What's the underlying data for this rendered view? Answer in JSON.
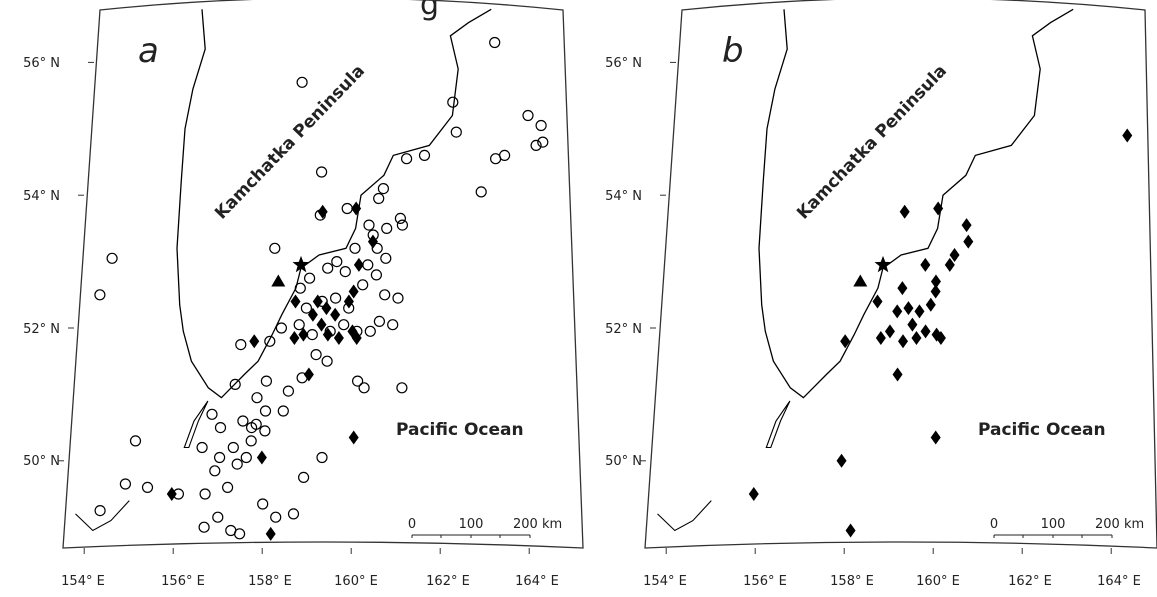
{
  "title_fragment": "g",
  "axes": {
    "lat_labels": [
      "56° N",
      "54° N",
      "52° N",
      "50° N"
    ],
    "lon_labels": [
      "154° E",
      "156° E",
      "158° E",
      "160° E",
      "162° E",
      "164° E"
    ]
  },
  "place_labels": {
    "peninsula": "Kamchatka Peninsula",
    "ocean": "Pacific Ocean"
  },
  "scale_bar": {
    "labels": [
      "0",
      "100",
      "200 km"
    ]
  },
  "colors": {
    "symbols": "#000000",
    "coast": "#000000",
    "background": "#ffffff"
  },
  "legend_symbols": {
    "circle": "open circle",
    "diamond": "filled diamond",
    "star": "filled star",
    "triangle": "filled triangle"
  },
  "panels": [
    {
      "letter": "a",
      "star": [
        158.7,
        52.95
      ],
      "triangle": [
        158.2,
        52.7
      ],
      "circles": [
        [
          158.6,
          55.7
        ],
        [
          162.9,
          56.3
        ],
        [
          162.0,
          55.4
        ],
        [
          162.1,
          54.95
        ],
        [
          163.7,
          55.2
        ],
        [
          164.0,
          55.05
        ],
        [
          164.05,
          54.8
        ],
        [
          163.9,
          54.75
        ],
        [
          163.2,
          54.6
        ],
        [
          163.0,
          54.55
        ],
        [
          162.7,
          54.05
        ],
        [
          161.4,
          54.6
        ],
        [
          161.0,
          54.55
        ],
        [
          160.5,
          54.1
        ],
        [
          160.4,
          53.95
        ],
        [
          159.1,
          54.35
        ],
        [
          159.1,
          53.7
        ],
        [
          158.1,
          53.2
        ],
        [
          159.7,
          53.8
        ],
        [
          160.2,
          53.55
        ],
        [
          160.6,
          53.5
        ],
        [
          160.9,
          53.65
        ],
        [
          160.95,
          53.55
        ],
        [
          160.3,
          53.4
        ],
        [
          159.9,
          53.2
        ],
        [
          160.4,
          53.2
        ],
        [
          160.6,
          53.05
        ],
        [
          160.2,
          52.95
        ],
        [
          159.7,
          52.85
        ],
        [
          159.5,
          53.0
        ],
        [
          159.3,
          52.9
        ],
        [
          158.9,
          52.75
        ],
        [
          158.7,
          52.6
        ],
        [
          158.85,
          52.3
        ],
        [
          159.2,
          52.4
        ],
        [
          159.5,
          52.45
        ],
        [
          159.8,
          52.3
        ],
        [
          160.1,
          52.65
        ],
        [
          160.4,
          52.8
        ],
        [
          160.6,
          52.5
        ],
        [
          160.9,
          52.45
        ],
        [
          160.8,
          52.05
        ],
        [
          160.5,
          52.1
        ],
        [
          160.3,
          51.95
        ],
        [
          160.0,
          51.95
        ],
        [
          159.7,
          52.05
        ],
        [
          159.4,
          51.95
        ],
        [
          159.0,
          51.9
        ],
        [
          158.7,
          52.05
        ],
        [
          158.3,
          52.0
        ],
        [
          158.05,
          51.8
        ],
        [
          157.4,
          51.75
        ],
        [
          159.1,
          51.6
        ],
        [
          159.35,
          51.5
        ],
        [
          158.8,
          51.25
        ],
        [
          158.5,
          51.05
        ],
        [
          158.0,
          51.2
        ],
        [
          157.8,
          50.95
        ],
        [
          157.3,
          51.15
        ],
        [
          156.8,
          50.7
        ],
        [
          157.0,
          50.5
        ],
        [
          157.5,
          50.6
        ],
        [
          157.8,
          50.55
        ],
        [
          158.4,
          50.75
        ],
        [
          158.0,
          50.45
        ],
        [
          157.7,
          50.3
        ],
        [
          157.3,
          50.2
        ],
        [
          157.0,
          50.05
        ],
        [
          156.6,
          50.2
        ],
        [
          156.9,
          49.85
        ],
        [
          157.4,
          49.95
        ],
        [
          157.6,
          50.05
        ],
        [
          157.2,
          49.6
        ],
        [
          156.7,
          49.5
        ],
        [
          156.1,
          49.5
        ],
        [
          157.0,
          49.15
        ],
        [
          157.3,
          48.95
        ],
        [
          158.0,
          49.35
        ],
        [
          158.3,
          49.15
        ],
        [
          158.7,
          49.2
        ],
        [
          158.9,
          49.75
        ],
        [
          159.3,
          50.05
        ],
        [
          156.7,
          49.0
        ],
        [
          157.5,
          48.9
        ],
        [
          154.35,
          49.25
        ],
        [
          155.1,
          50.3
        ],
        [
          154.9,
          49.65
        ],
        [
          155.4,
          49.6
        ],
        [
          154.2,
          52.5
        ],
        [
          154.45,
          53.05
        ],
        [
          160.05,
          51.2
        ],
        [
          160.2,
          51.1
        ],
        [
          161.05,
          51.1
        ],
        [
          158.0,
          50.75
        ],
        [
          157.7,
          50.5
        ]
      ],
      "diamonds": [
        [
          159.15,
          53.75
        ],
        [
          159.9,
          53.8
        ],
        [
          160.3,
          53.3
        ],
        [
          158.6,
          52.4
        ],
        [
          159.0,
          52.2
        ],
        [
          159.3,
          52.3
        ],
        [
          159.5,
          52.2
        ],
        [
          159.8,
          52.4
        ],
        [
          159.9,
          52.55
        ],
        [
          159.6,
          51.85
        ],
        [
          159.9,
          51.95
        ],
        [
          160.0,
          51.85
        ],
        [
          159.35,
          51.9
        ],
        [
          158.8,
          51.9
        ],
        [
          158.6,
          51.85
        ],
        [
          158.95,
          51.3
        ],
        [
          157.7,
          51.8
        ],
        [
          157.95,
          50.05
        ],
        [
          155.95,
          49.5
        ],
        [
          158.2,
          48.9
        ],
        [
          160.0,
          50.35
        ],
        [
          159.2,
          52.05
        ],
        [
          160.0,
          52.95
        ],
        [
          159.1,
          52.4
        ]
      ]
    },
    {
      "letter": "b",
      "star": [
        158.7,
        52.95
      ],
      "triangle": [
        158.2,
        52.7
      ],
      "circles": [],
      "diamonds": [
        [
          164.1,
          54.9
        ],
        [
          159.15,
          53.75
        ],
        [
          159.9,
          53.8
        ],
        [
          160.55,
          53.55
        ],
        [
          160.6,
          53.3
        ],
        [
          160.3,
          53.1
        ],
        [
          160.2,
          52.95
        ],
        [
          159.65,
          52.95
        ],
        [
          159.15,
          52.6
        ],
        [
          159.9,
          52.7
        ],
        [
          158.6,
          52.4
        ],
        [
          159.05,
          52.25
        ],
        [
          159.3,
          52.3
        ],
        [
          159.55,
          52.25
        ],
        [
          159.8,
          52.35
        ],
        [
          159.9,
          52.55
        ],
        [
          159.7,
          51.95
        ],
        [
          159.95,
          51.9
        ],
        [
          160.05,
          51.85
        ],
        [
          159.4,
          52.05
        ],
        [
          158.9,
          51.95
        ],
        [
          158.7,
          51.85
        ],
        [
          159.2,
          51.8
        ],
        [
          159.5,
          51.85
        ],
        [
          159.1,
          51.3
        ],
        [
          157.9,
          51.8
        ],
        [
          160.0,
          50.35
        ],
        [
          157.9,
          50.0
        ],
        [
          158.15,
          48.95
        ],
        [
          155.95,
          49.5
        ]
      ]
    }
  ]
}
